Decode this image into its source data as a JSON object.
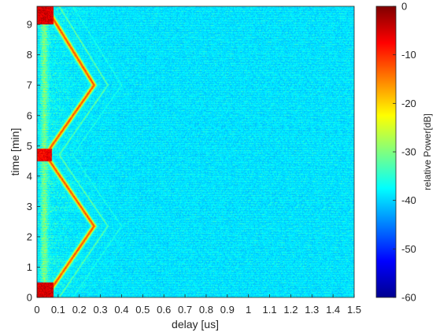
{
  "chart_data": {
    "type": "heatmap",
    "title": "",
    "xlabel": "delay [us]",
    "ylabel": "time [min]",
    "colorbar_label": "relative Power[dB]",
    "colormap": "jet",
    "xlim": [
      0,
      1.5
    ],
    "ylim": [
      0,
      9.6
    ],
    "clim": [
      -60,
      0
    ],
    "x_ticks": [
      0,
      0.1,
      0.2,
      0.3,
      0.4,
      0.5,
      0.6,
      0.7,
      0.8,
      0.9,
      1,
      1.1,
      1.2,
      1.3,
      1.4,
      1.5
    ],
    "x_tick_labels": [
      "0",
      "0.1",
      "0.2",
      "0.3",
      "0.4",
      "0.5",
      "0.6",
      "0.7",
      "0.8",
      "0.9",
      "1",
      "1.1",
      "1.2",
      "1.3",
      "1.4",
      "1.5"
    ],
    "y_ticks": [
      0,
      1,
      2,
      3,
      4,
      5,
      6,
      7,
      8,
      9
    ],
    "y_tick_labels": [
      "0",
      "1",
      "2",
      "3",
      "4",
      "5",
      "6",
      "7",
      "8",
      "9"
    ],
    "colorbar_ticks": [
      0,
      -10,
      -20,
      -30,
      -40,
      -50,
      -60
    ],
    "colorbar_tick_labels": [
      "0",
      "-10",
      "-20",
      "-30",
      "-40",
      "-50",
      "-60"
    ],
    "main_path": {
      "description_points_time_min": [
        0,
        2.35,
        4.7,
        7.0,
        9.6
      ],
      "delay_us": [
        0.04,
        0.27,
        0.04,
        0.27,
        0.04
      ]
    }
  }
}
